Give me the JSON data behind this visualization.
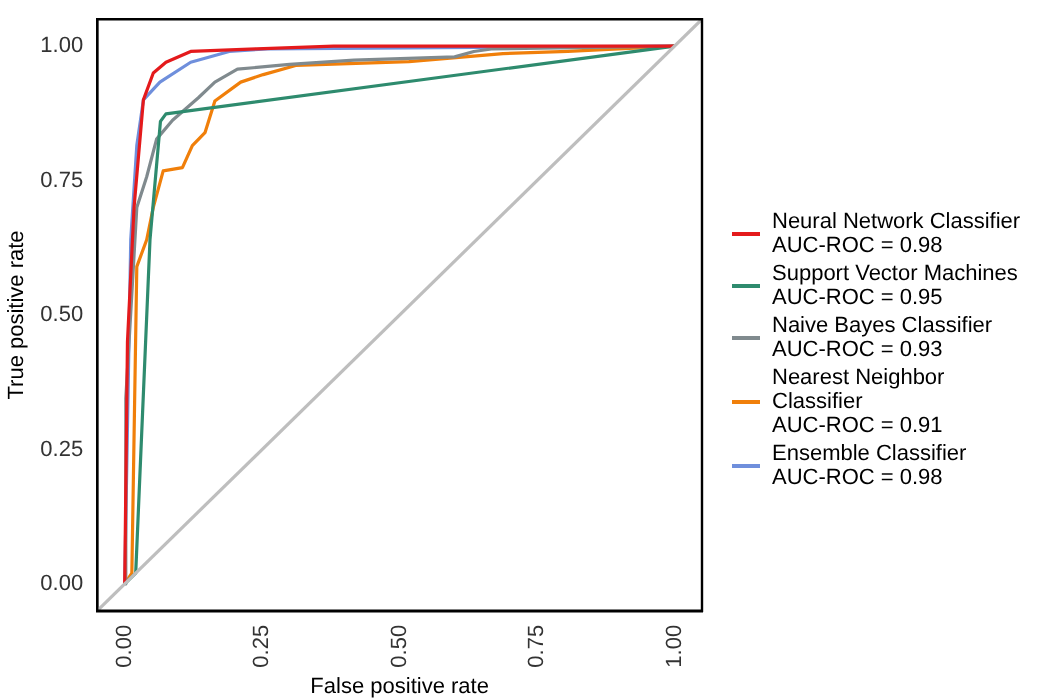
{
  "chart_data": {
    "type": "line",
    "xlabel": "False positive rate",
    "ylabel": "True positive rate",
    "xlim": [
      -0.05,
      1.05
    ],
    "ylim": [
      -0.05,
      1.05
    ],
    "xticks": [
      {
        "value": 0,
        "label": "0.00"
      },
      {
        "value": 0.25,
        "label": "0.25"
      },
      {
        "value": 0.5,
        "label": "0.50"
      },
      {
        "value": 0.75,
        "label": "0.75"
      },
      {
        "value": 1,
        "label": "1.00"
      }
    ],
    "yticks": [
      {
        "value": 0,
        "label": "0.00"
      },
      {
        "value": 0.25,
        "label": "0.25"
      },
      {
        "value": 0.5,
        "label": "0.50"
      },
      {
        "value": 0.75,
        "label": "0.75"
      },
      {
        "value": 1,
        "label": "1.00"
      }
    ],
    "grid": false,
    "legend": "right",
    "marker": "none",
    "line_style": "solid",
    "series": [
      {
        "color": "#bebebe",
        "x": [
          -0.05,
          1.05
        ],
        "values": [
          -0.05,
          1.05
        ]
      },
      {
        "name": "Neural Network Classifier\nAUC-ROC = 0.98",
        "color": "#e41a1c",
        "x": [
          0,
          0.005,
          0.017,
          0.034,
          0.052,
          0.075,
          0.12,
          0.24,
          0.38,
          1
        ],
        "values": [
          0,
          0.45,
          0.7,
          0.9,
          0.95,
          0.97,
          0.99,
          0.995,
          1,
          1
        ]
      },
      {
        "name": "Support Vector Machines\nAUC-ROC = 0.95",
        "color": "#2e8b6e",
        "x": [
          0,
          0.02,
          0.046,
          0.065,
          0.075,
          1
        ],
        "values": [
          0,
          0.02,
          0.64,
          0.86,
          0.874,
          1
        ]
      },
      {
        "name": "Naive Bayes Classifier\nAUC-ROC = 0.93",
        "color": "#808a8e",
        "x": [
          0,
          0.002,
          0.022,
          0.04,
          0.058,
          0.087,
          0.134,
          0.164,
          0.205,
          0.3,
          0.417,
          0.6,
          0.635,
          0.67,
          1
        ],
        "values": [
          0,
          0.345,
          0.7,
          0.757,
          0.827,
          0.862,
          0.904,
          0.933,
          0.957,
          0.966,
          0.974,
          0.98,
          0.99,
          0.995,
          1
        ]
      },
      {
        "name": "Nearest Neighbor Classifier\nAUC-ROC = 0.91",
        "color": "#f07f0a",
        "x": [
          0,
          0.013,
          0.022,
          0.04,
          0.052,
          0.07,
          0.105,
          0.123,
          0.146,
          0.164,
          0.211,
          0.252,
          0.311,
          0.517,
          0.688,
          0.806,
          1
        ],
        "values": [
          0,
          0.02,
          0.59,
          0.64,
          0.7,
          0.768,
          0.774,
          0.815,
          0.839,
          0.898,
          0.933,
          0.947,
          0.964,
          0.971,
          0.986,
          0.99,
          1
        ]
      },
      {
        "name": "Ensemble Classifier\nAUC-ROC = 0.98",
        "color": "#6f8fdc",
        "x": [
          0,
          0.011,
          0.022,
          0.034,
          0.064,
          0.12,
          0.19,
          0.26,
          1
        ],
        "values": [
          0,
          0.64,
          0.815,
          0.9,
          0.933,
          0.97,
          0.99,
          0.995,
          1
        ]
      }
    ]
  }
}
